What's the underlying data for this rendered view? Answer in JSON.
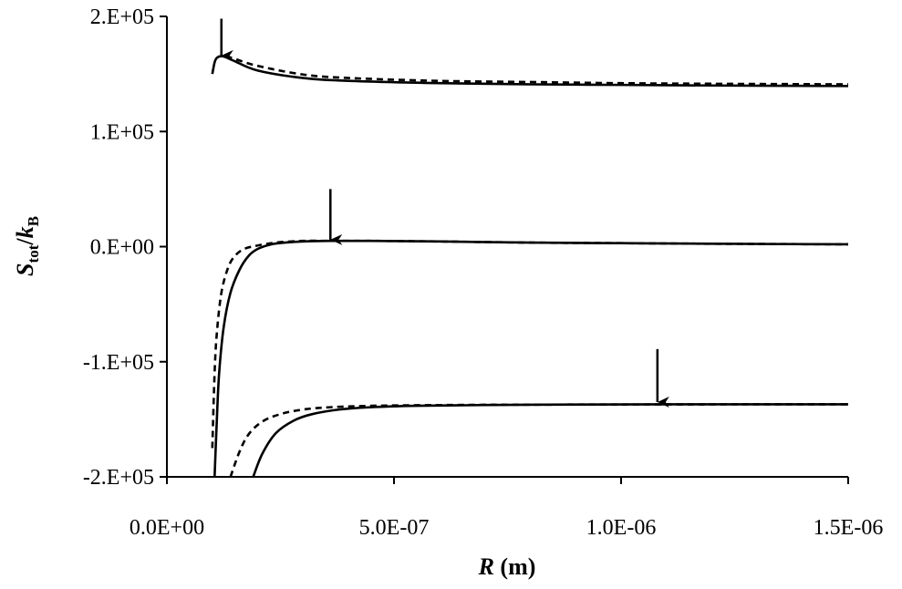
{
  "chart_data": {
    "type": "line",
    "xlabel": {
      "var": "R",
      "unit": " (m)"
    },
    "ylabel": {
      "S": "S",
      "S_sub": "tot",
      "slash": "/",
      "k": "k",
      "k_sub": "B"
    },
    "xlim": [
      0,
      1.5e-06
    ],
    "ylim": [
      -200000,
      200000
    ],
    "x_ticks": [
      {
        "value": 0,
        "label": "0.0E+00"
      },
      {
        "value": 5e-07,
        "label": "5.0E-07"
      },
      {
        "value": 1e-06,
        "label": "1.0E-06"
      },
      {
        "value": 1.5e-06,
        "label": "1.5E-06"
      }
    ],
    "y_ticks": [
      {
        "value": 200000,
        "label": "2.E+05"
      },
      {
        "value": 100000,
        "label": "1.E+05"
      },
      {
        "value": 0,
        "label": "0.E+00"
      },
      {
        "value": -100000,
        "label": "-1.E+05"
      },
      {
        "value": -200000,
        "label": "-2.E+05"
      }
    ],
    "grid": false,
    "legend": "none",
    "series": [
      {
        "style": "solid",
        "x": [
          1e-07,
          1.05e-07,
          1.1e-07,
          1.2e-07,
          1.3e-07,
          1.5e-07,
          2e-07,
          3e-07,
          4e-07,
          6e-07,
          8e-07,
          1e-06,
          1.2e-06,
          1.5e-06
        ],
        "y": [
          150000,
          160000,
          164000,
          165500,
          164500,
          161000,
          153000,
          146500,
          144000,
          142000,
          141000,
          140500,
          140000,
          139500
        ]
      },
      {
        "style": "dashed",
        "x": [
          1.3e-07,
          1.5e-07,
          2e-07,
          3e-07,
          4e-07,
          6e-07,
          8e-07,
          1e-06,
          1.2e-06,
          1.5e-06
        ],
        "y": [
          165500,
          163000,
          157000,
          149500,
          146500,
          144000,
          143000,
          142000,
          141500,
          141000
        ]
      },
      {
        "style": "solid",
        "x": [
          1.05e-07,
          1.1e-07,
          1.15e-07,
          1.25e-07,
          1.4e-07,
          1.6e-07,
          1.8e-07,
          2e-07,
          2.3e-07,
          2.6e-07,
          3e-07,
          3.6e-07,
          4.5e-07,
          6e-07,
          8e-07,
          1e-06,
          1.2e-06,
          1.5e-06
        ],
        "y": [
          -200000,
          -150000,
          -110000,
          -70000,
          -40000,
          -20000,
          -8000,
          -2000,
          2000,
          3500,
          4500,
          5000,
          5000,
          4500,
          3500,
          3000,
          2500,
          2000
        ]
      },
      {
        "style": "dashed",
        "x": [
          1e-07,
          1.05e-07,
          1.1e-07,
          1.2e-07,
          1.35e-07,
          1.5e-07,
          1.7e-07,
          2e-07,
          2.4e-07,
          3e-07,
          3.6e-07,
          4.5e-07,
          6e-07,
          8e-07,
          1e-06,
          1.2e-06,
          1.5e-06
        ],
        "y": [
          -175000,
          -110000,
          -75000,
          -40000,
          -18000,
          -8000,
          -2000,
          1000,
          3500,
          5000,
          5000,
          5000,
          4500,
          3500,
          3000,
          2500,
          2000
        ]
      },
      {
        "style": "solid",
        "x": [
          1.9e-07,
          2.1e-07,
          2.4e-07,
          2.8e-07,
          3.2e-07,
          3.8e-07,
          4.5e-07,
          5.5e-07,
          7e-07,
          9e-07,
          1.1e-06,
          1.3e-06,
          1.5e-06
        ],
        "y": [
          -200000,
          -180000,
          -162000,
          -151000,
          -145500,
          -141500,
          -139500,
          -138300,
          -137600,
          -137200,
          -137000,
          -137000,
          -137000
        ]
      },
      {
        "style": "dashed",
        "x": [
          1.4e-07,
          1.6e-07,
          1.8e-07,
          2.1e-07,
          2.5e-07,
          3e-07,
          3.6e-07,
          4.5e-07,
          5.5e-07,
          7e-07,
          9e-07,
          1.1e-06,
          1.3e-06,
          1.5e-06
        ],
        "y": [
          -200000,
          -178000,
          -163000,
          -152000,
          -145500,
          -141500,
          -139500,
          -138300,
          -137800,
          -137400,
          -137200,
          -137100,
          -137000,
          -137000
        ]
      }
    ],
    "annotations": [
      {
        "type": "arrow",
        "x": 1.2e-07,
        "y_from": 198000,
        "y_to": 166000
      },
      {
        "type": "arrow",
        "x": 3.6e-07,
        "y_from": 50000,
        "y_to": 6000
      },
      {
        "type": "arrow",
        "x": 1.08e-06,
        "y_from": -89000,
        "y_to": -135000
      }
    ]
  }
}
